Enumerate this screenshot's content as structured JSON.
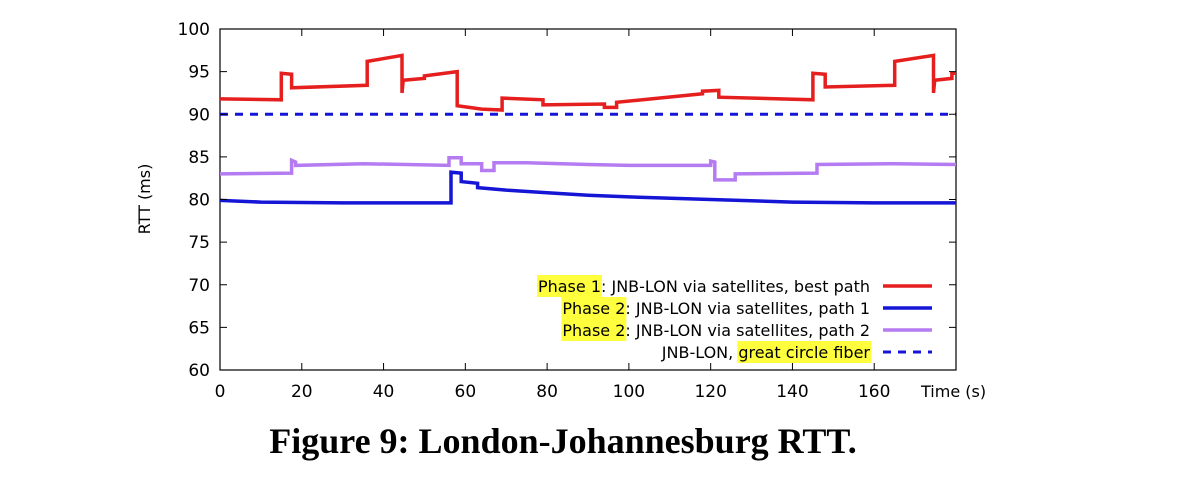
{
  "colors": {
    "phase1": "#e51e1e",
    "path1": "#1515d6",
    "path2": "#b57cf2",
    "fiber": "#1515d6",
    "highlight": "#ffff3d"
  },
  "caption": "Figure 9: London-Johannesburg RTT.",
  "chart_data": {
    "type": "line",
    "title": "",
    "xlabel": "Time (s)",
    "ylabel": "RTT (ms)",
    "xlim": [
      0,
      180
    ],
    "ylim": [
      60,
      100
    ],
    "xticks": [
      0,
      20,
      40,
      60,
      80,
      100,
      120,
      140,
      160
    ],
    "yticks": [
      60,
      65,
      70,
      75,
      80,
      85,
      90,
      95,
      100
    ],
    "legend_position": "bottom-right",
    "series": [
      {
        "id": "phase1",
        "name": "Phase 1: JNB-LON via satellites, best path",
        "name_highlight": "Phase 1",
        "name_rest": ": JNB-LON via satellites, best path",
        "style": "solid",
        "points": [
          [
            0,
            91.8
          ],
          [
            15,
            91.7
          ],
          [
            15,
            94.8
          ],
          [
            17.5,
            94.7
          ],
          [
            17.5,
            93.1
          ],
          [
            36,
            93.4
          ],
          [
            36,
            96.2
          ],
          [
            44.5,
            96.9
          ],
          [
            44.5,
            92.5
          ],
          [
            44.8,
            94.0
          ],
          [
            50,
            94.2
          ],
          [
            50,
            94.5
          ],
          [
            58,
            95.0
          ],
          [
            58,
            91.0
          ],
          [
            64,
            90.6
          ],
          [
            69,
            90.5
          ],
          [
            69,
            91.9
          ],
          [
            79,
            91.7
          ],
          [
            79,
            91.1
          ],
          [
            94,
            91.2
          ],
          [
            94,
            90.8
          ],
          [
            97,
            90.8
          ],
          [
            97,
            91.4
          ],
          [
            118,
            92.4
          ],
          [
            118,
            92.7
          ],
          [
            122,
            92.8
          ],
          [
            122,
            92.0
          ],
          [
            145,
            91.7
          ],
          [
            145,
            94.8
          ],
          [
            148,
            94.7
          ],
          [
            148,
            93.2
          ],
          [
            165,
            93.4
          ],
          [
            165,
            96.2
          ],
          [
            174.5,
            96.9
          ],
          [
            174.5,
            92.5
          ],
          [
            174.8,
            94.0
          ],
          [
            179,
            94.2
          ],
          [
            179,
            94.8
          ],
          [
            180,
            94.8
          ]
        ]
      },
      {
        "id": "path1",
        "name": "Phase 2: JNB-LON via satellites, path 1",
        "name_highlight": "Phase 2",
        "name_rest": ": JNB-LON via satellites, path 1",
        "style": "solid",
        "points": [
          [
            0,
            79.9
          ],
          [
            10,
            79.7
          ],
          [
            30,
            79.6
          ],
          [
            56.5,
            79.6
          ],
          [
            56.5,
            83.2
          ],
          [
            59,
            83.1
          ],
          [
            59,
            82.1
          ],
          [
            63,
            81.9
          ],
          [
            63,
            81.4
          ],
          [
            70,
            81.1
          ],
          [
            80,
            80.8
          ],
          [
            90,
            80.5
          ],
          [
            100,
            80.3
          ],
          [
            120,
            80.0
          ],
          [
            140,
            79.7
          ],
          [
            160,
            79.6
          ],
          [
            180,
            79.6
          ]
        ]
      },
      {
        "id": "path2",
        "name": "Phase 2: JNB-LON via satellites, path 2",
        "name_highlight": "Phase 2",
        "name_rest": ": JNB-LON via satellites, path 2",
        "style": "solid",
        "points": [
          [
            0,
            83.0
          ],
          [
            17.5,
            83.1
          ],
          [
            17.5,
            84.6
          ],
          [
            18.5,
            84.4
          ],
          [
            18.5,
            84.0
          ],
          [
            35,
            84.2
          ],
          [
            56,
            84.0
          ],
          [
            56,
            84.9
          ],
          [
            59,
            84.9
          ],
          [
            59,
            84.2
          ],
          [
            64,
            84.2
          ],
          [
            64,
            83.4
          ],
          [
            67,
            83.4
          ],
          [
            67,
            84.3
          ],
          [
            75,
            84.3
          ],
          [
            90,
            84.1
          ],
          [
            100,
            84.0
          ],
          [
            120,
            84.0
          ],
          [
            120,
            84.5
          ],
          [
            121,
            84.4
          ],
          [
            121,
            82.3
          ],
          [
            126,
            82.3
          ],
          [
            126,
            83.0
          ],
          [
            146,
            83.1
          ],
          [
            146,
            84.1
          ],
          [
            165,
            84.2
          ],
          [
            180,
            84.1
          ]
        ]
      },
      {
        "id": "fiber",
        "name": "JNB-LON, great circle fiber",
        "name_plain": "JNB-LON, ",
        "name_highlight_after": "great circle fiber",
        "style": "dashed",
        "points": [
          [
            0,
            90
          ],
          [
            180,
            90
          ]
        ]
      }
    ]
  }
}
